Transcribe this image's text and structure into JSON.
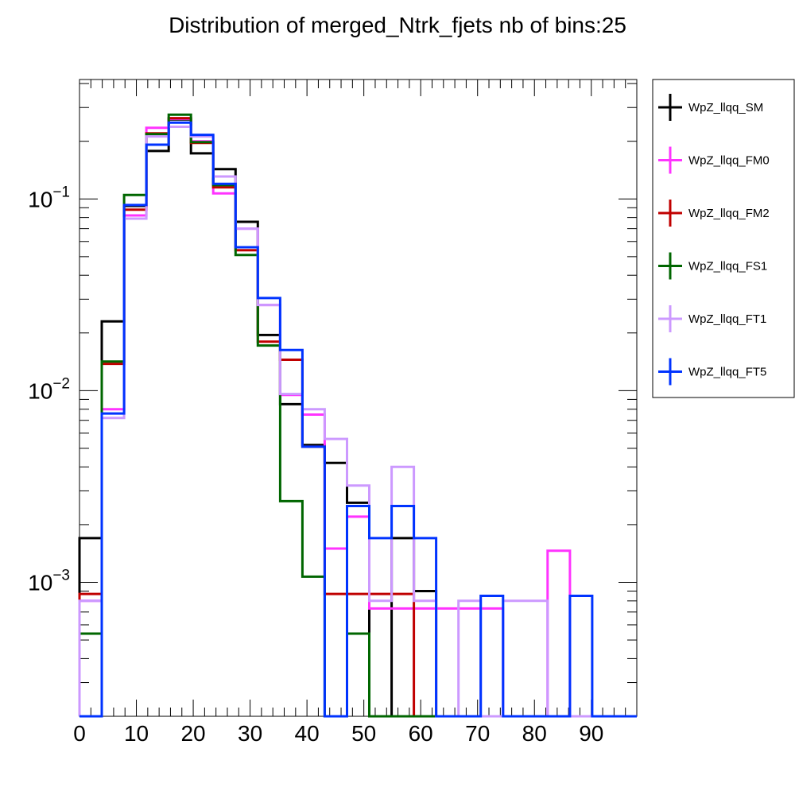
{
  "chart_data": {
    "type": "histogram",
    "title": "Distribution of merged_Ntrk_fjets nb of bins:25",
    "xlabel": "",
    "ylabel": "",
    "x_scale": "linear",
    "y_scale": "log",
    "xlim": [
      0,
      98
    ],
    "ylim": [
      0.0002,
      0.42
    ],
    "bin_edges": [
      0,
      3.92,
      7.84,
      11.76,
      15.68,
      19.6,
      23.52,
      27.44,
      31.36,
      35.28,
      39.2,
      43.12,
      47.04,
      50.96,
      54.88,
      58.8,
      62.72,
      66.64,
      70.56,
      74.48,
      78.4,
      82.32,
      86.24,
      90.16,
      94.08,
      98
    ],
    "x_ticks": [
      {
        "value": 0,
        "label": "0"
      },
      {
        "value": 10,
        "label": "10"
      },
      {
        "value": 20,
        "label": "20"
      },
      {
        "value": 30,
        "label": "30"
      },
      {
        "value": 40,
        "label": "40"
      },
      {
        "value": 50,
        "label": "50"
      },
      {
        "value": 60,
        "label": "60"
      },
      {
        "value": 70,
        "label": "70"
      },
      {
        "value": 80,
        "label": "80"
      },
      {
        "value": 90,
        "label": "90"
      }
    ],
    "y_ticks": [
      {
        "value": 0.1,
        "base": "10",
        "exp": "−1"
      },
      {
        "value": 0.01,
        "base": "10",
        "exp": "−2"
      },
      {
        "value": 0.001,
        "base": "10",
        "exp": "−3"
      }
    ],
    "legend_position": "right",
    "series": [
      {
        "name": "WpZ_llqq_SM",
        "color": "#000000",
        "values": [
          0.0017,
          0.023,
          0.092,
          0.178,
          0.26,
          0.173,
          0.143,
          0.076,
          0.0195,
          0.0085,
          0.0052,
          0.0042,
          0.0026,
          0,
          0.0017,
          0.0009,
          0,
          0,
          0,
          0,
          0,
          0,
          0,
          0,
          0
        ]
      },
      {
        "name": "WpZ_llqq_FM0",
        "color": "#ff33ff",
        "values": [
          0.0008,
          0.008,
          0.082,
          0.235,
          0.262,
          0.2,
          0.107,
          0.07,
          0.028,
          0.0095,
          0.0075,
          0.0015,
          0.0022,
          0.00073,
          0.00073,
          0.00073,
          0.00073,
          0.00073,
          0.00073,
          0,
          0,
          0.00146,
          0,
          0,
          0
        ]
      },
      {
        "name": "WpZ_llqq_FM2",
        "color": "#c00000",
        "values": [
          0.00087,
          0.0138,
          0.088,
          0.22,
          0.264,
          0.196,
          0.115,
          0.054,
          0.018,
          0.0145,
          0.0051,
          0.00087,
          0.00087,
          0.00087,
          0.00087,
          0,
          0,
          0,
          0,
          0,
          0,
          0,
          0,
          0,
          0
        ]
      },
      {
        "name": "WpZ_llqq_FS1",
        "color": "#006600",
        "values": [
          0.00054,
          0.0142,
          0.105,
          0.218,
          0.275,
          0.198,
          0.118,
          0.051,
          0.0172,
          0.00265,
          0.00107,
          0,
          0.00054,
          0,
          0,
          0,
          0,
          0,
          0,
          0,
          0,
          0,
          0,
          0,
          0
        ]
      },
      {
        "name": "WpZ_llqq_FT1",
        "color": "#cc99ff",
        "values": [
          0.0008,
          0.0072,
          0.079,
          0.212,
          0.238,
          0.212,
          0.131,
          0.07,
          0.028,
          0.0096,
          0.008,
          0.0056,
          0.0032,
          0.0008,
          0.004,
          0.0008,
          0,
          0.0008,
          0,
          0.0008,
          0.0008,
          0,
          0,
          0,
          0
        ]
      },
      {
        "name": "WpZ_llqq_FT5",
        "color": "#0033ff",
        "values": [
          0,
          0.0076,
          0.093,
          0.192,
          0.25,
          0.216,
          0.12,
          0.056,
          0.0304,
          0.0163,
          0.0051,
          0,
          0.0025,
          0.0017,
          0.0025,
          0.0017,
          0,
          0,
          0.00085,
          0,
          0,
          0,
          0.00085,
          0,
          0
        ]
      }
    ]
  }
}
